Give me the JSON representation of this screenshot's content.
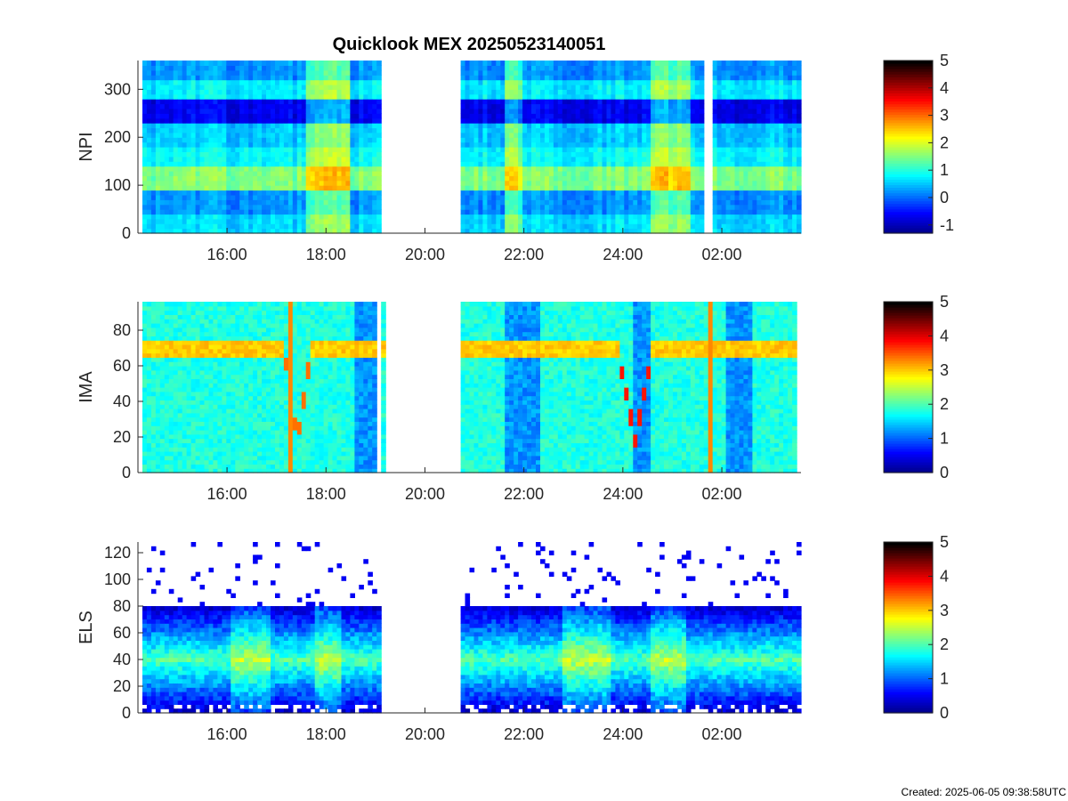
{
  "title": "Quicklook MEX 20250523140051",
  "footer_text": "Created: 2025-06-05 09:38:58UTC",
  "colormap": [
    "#00008f",
    "#0000ff",
    "#0080ff",
    "#00ffff",
    "#80ff80",
    "#ffff00",
    "#ff8000",
    "#ff0000",
    "#800000",
    "#000000"
  ],
  "chart_data": [
    {
      "type": "heatmap",
      "panel": "NPI",
      "ylabel": "NPI",
      "x_range_hours": [
        14.2,
        27.6
      ],
      "xticks": [
        16,
        18,
        20,
        22,
        24,
        26
      ],
      "xtick_labels": [
        "16:00",
        "18:00",
        "20:00",
        "22:00",
        "24:00",
        "02:00"
      ],
      "ylim": [
        0,
        360
      ],
      "yticks": [
        0,
        100,
        200,
        300
      ],
      "data_intervals_hours": [
        [
          14.3,
          19.1
        ],
        [
          20.7,
          25.65
        ],
        [
          25.8,
          27.6
        ]
      ],
      "channel_bands": [
        {
          "y": [
            0,
            45
          ],
          "value": 0.6
        },
        {
          "y": [
            45,
            90
          ],
          "value": 0.2
        },
        {
          "y": [
            90,
            140
          ],
          "value": 1.5
        },
        {
          "y": [
            140,
            180
          ],
          "value": 0.8
        },
        {
          "y": [
            180,
            230
          ],
          "value": 0.5
        },
        {
          "y": [
            230,
            280
          ],
          "value": -0.7
        },
        {
          "y": [
            280,
            325
          ],
          "value": 0.7
        },
        {
          "y": [
            325,
            360
          ],
          "value": 0.2
        }
      ],
      "features": [
        {
          "x": [
            17.6,
            18.5
          ],
          "y": [
            0,
            360
          ],
          "value_add": 1.0
        },
        {
          "x": [
            21.6,
            22.0
          ],
          "y": [
            0,
            360
          ],
          "value_add": 0.8
        },
        {
          "x": [
            24.6,
            25.4
          ],
          "y": [
            0,
            360
          ],
          "value_add": 1.0
        }
      ],
      "colorbar": {
        "min": -1.3,
        "max": 5,
        "ticks": [
          -1,
          0,
          1,
          2,
          3,
          4,
          5
        ]
      }
    },
    {
      "type": "heatmap",
      "panel": "IMA",
      "ylabel": "IMA",
      "x_range_hours": [
        14.2,
        27.6
      ],
      "xticks": [
        16,
        18,
        20,
        22,
        24,
        26
      ],
      "xtick_labels": [
        "16:00",
        "18:00",
        "20:00",
        "22:00",
        "24:00",
        "02:00"
      ],
      "ylim": [
        0,
        96
      ],
      "yticks": [
        0,
        20,
        40,
        60,
        80
      ],
      "data_intervals_hours": [
        [
          14.3,
          19.05
        ],
        [
          19.15,
          19.2
        ],
        [
          20.7,
          27.5
        ]
      ],
      "background_value": 1.8,
      "energy_band": {
        "y_center": 69,
        "width": 10,
        "value": 3.0
      },
      "dips": [
        {
          "x": [
            17.15,
            17.7
          ],
          "y_bottom": 18,
          "value": 3.4
        },
        {
          "x": [
            23.9,
            24.6
          ],
          "y_bottom": 18,
          "value": 3.8
        }
      ],
      "low_intervals_hours": [
        [
          18.6,
          19.05
        ],
        [
          21.6,
          22.3
        ],
        [
          24.2,
          24.6
        ],
        [
          26.1,
          26.6
        ]
      ],
      "spikes_hours": [
        17.3,
        25.75
      ],
      "colorbar": {
        "min": 0,
        "max": 5,
        "ticks": [
          0,
          1,
          2,
          3,
          4,
          5
        ]
      }
    },
    {
      "type": "heatmap",
      "panel": "ELS",
      "ylabel": "ELS",
      "x_range_hours": [
        14.2,
        27.6
      ],
      "xticks": [
        16,
        18,
        20,
        22,
        24,
        26
      ],
      "xtick_labels": [
        "16:00",
        "18:00",
        "20:00",
        "22:00",
        "24:00",
        "02:00"
      ],
      "ylim": [
        0,
        128
      ],
      "yticks": [
        0,
        20,
        40,
        60,
        80,
        100,
        120
      ],
      "data_intervals_hours": [
        [
          14.3,
          19.1
        ],
        [
          20.7,
          27.6
        ]
      ],
      "core_band": {
        "y_center": 40,
        "value": 2.0,
        "upper_edge": 80
      },
      "bright_intervals_hours": [
        [
          16.1,
          16.9
        ],
        [
          17.8,
          18.3
        ],
        [
          22.8,
          23.8
        ],
        [
          24.6,
          25.3
        ]
      ],
      "colorbar": {
        "min": 0,
        "max": 5,
        "ticks": [
          0,
          1,
          2,
          3,
          4,
          5
        ]
      }
    }
  ]
}
